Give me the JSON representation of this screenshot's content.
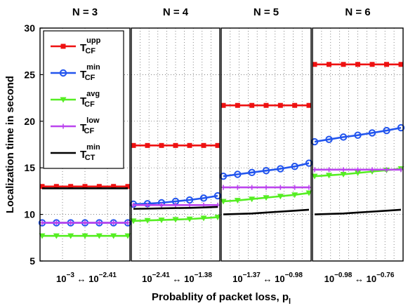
{
  "chart_data": {
    "type": "line",
    "ylabel": "Localization time in second",
    "xlabel_main": "Probablity of packet loss, p",
    "xlabel_sub": "l",
    "ylim": [
      5,
      30
    ],
    "yticks": [
      "5",
      "10",
      "15",
      "20",
      "25",
      "30"
    ],
    "legend_position": "top-left",
    "grid": true,
    "legend": [
      {
        "base": "T",
        "sup": "upp",
        "sub": "CF",
        "color": "#ee1111",
        "marker": "square"
      },
      {
        "base": "T",
        "sup": "min",
        "sub": "CF",
        "color": "#2255ee",
        "marker": "circle"
      },
      {
        "base": "T",
        "sup": "avg",
        "sub": "CF",
        "color": "#55ee22",
        "marker": "triangle-down"
      },
      {
        "base": "T",
        "sup": "low",
        "sub": "CF",
        "color": "#bb44ee",
        "marker": "plus"
      },
      {
        "base": "T",
        "sup": "min",
        "sub": "CT",
        "color": "#000000",
        "marker": "none"
      }
    ],
    "panels": [
      {
        "title": "N = 3",
        "x_range": {
          "left_base": "10",
          "left_exp": "−3",
          "arrow": "↔",
          "right_base": "10",
          "right_exp": "−2.41"
        },
        "series": [
          [
            13.0,
            13.0,
            13.0,
            13.0,
            13.0,
            13.0,
            13.0
          ],
          [
            9.1,
            9.1,
            9.1,
            9.1,
            9.1,
            9.1,
            9.1
          ],
          [
            7.7,
            7.7,
            7.7,
            7.7,
            7.7,
            7.7,
            7.7
          ],
          [
            9.1,
            9.1,
            9.1,
            9.1,
            9.1,
            9.1,
            9.1
          ],
          [
            12.8,
            12.8,
            12.8,
            12.8,
            12.8,
            12.8,
            12.8
          ]
        ]
      },
      {
        "title": "N = 4",
        "x_range": {
          "left_base": "10",
          "left_exp": "−2.41",
          "arrow": "↔",
          "right_base": "10",
          "right_exp": "−1.38"
        },
        "series": [
          [
            17.4,
            17.4,
            17.4,
            17.4,
            17.4,
            17.4,
            17.4
          ],
          [
            11.1,
            11.15,
            11.25,
            11.4,
            11.55,
            11.75,
            12.0
          ],
          [
            9.3,
            9.35,
            9.4,
            9.45,
            9.5,
            9.6,
            9.7
          ],
          [
            11.0,
            11.0,
            11.0,
            11.0,
            11.0,
            11.0,
            11.0
          ],
          [
            10.6,
            10.62,
            10.65,
            10.68,
            10.7,
            10.75,
            10.8
          ]
        ]
      },
      {
        "title": "N = 5",
        "x_range": {
          "left_base": "10",
          "left_exp": "−1.37",
          "arrow": "↔",
          "right_base": "10",
          "right_exp": "−0.98"
        },
        "series": [
          [
            21.7,
            21.7,
            21.7,
            21.7,
            21.7,
            21.7,
            21.7
          ],
          [
            14.1,
            14.3,
            14.5,
            14.7,
            14.9,
            15.15,
            15.5
          ],
          [
            11.4,
            11.5,
            11.65,
            11.8,
            11.95,
            12.1,
            12.3
          ],
          [
            12.9,
            12.9,
            12.9,
            12.9,
            12.9,
            12.9,
            12.9
          ],
          [
            10.0,
            10.05,
            10.1,
            10.2,
            10.3,
            10.4,
            10.5
          ]
        ]
      },
      {
        "title": "N = 6",
        "x_range": {
          "left_base": "10",
          "left_exp": "−0.98",
          "arrow": "↔",
          "right_base": "10",
          "right_exp": "−0.76"
        },
        "series": [
          [
            26.1,
            26.1,
            26.1,
            26.1,
            26.1,
            26.1,
            26.1
          ],
          [
            17.8,
            18.05,
            18.3,
            18.5,
            18.75,
            19.0,
            19.3
          ],
          [
            14.1,
            14.2,
            14.3,
            14.45,
            14.6,
            14.75,
            14.9
          ],
          [
            14.8,
            14.8,
            14.8,
            14.8,
            14.8,
            14.8,
            14.8
          ],
          [
            10.0,
            10.05,
            10.1,
            10.2,
            10.3,
            10.4,
            10.5
          ]
        ]
      }
    ]
  }
}
